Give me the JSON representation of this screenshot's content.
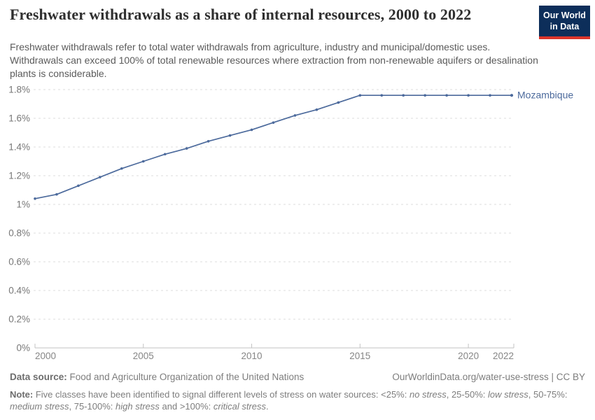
{
  "header": {
    "title": "Freshwater withdrawals as a share of internal resources, 2000 to 2022",
    "subtitle": "Freshwater withdrawals refer to total water withdrawals from agriculture, industry and municipal/domestic uses. Withdrawals can exceed 100% of total renewable resources where extraction from non-renewable aquifers or desalination plants is considerable.",
    "logo": {
      "line1": "Our World",
      "line2": "in Data",
      "bg_color": "#0d2e5a",
      "bar_color": "#dc352b"
    }
  },
  "chart_data": {
    "type": "line",
    "title": "Freshwater withdrawals as a share of internal resources, 2000 to 2022",
    "xlabel": "",
    "ylabel": "",
    "unit": "%",
    "xlim": [
      2000,
      2022
    ],
    "ylim": [
      0,
      1.8
    ],
    "grid": "dashed-horizontal",
    "legend_position": "end-of-line",
    "x": [
      2000,
      2001,
      2002,
      2003,
      2004,
      2005,
      2006,
      2007,
      2008,
      2009,
      2010,
      2011,
      2012,
      2013,
      2014,
      2015,
      2016,
      2017,
      2018,
      2019,
      2020,
      2021,
      2022
    ],
    "series": [
      {
        "name": "Mozambique",
        "color": "#4c6a9c",
        "values": [
          1.04,
          1.07,
          1.13,
          1.19,
          1.25,
          1.3,
          1.35,
          1.39,
          1.44,
          1.48,
          1.52,
          1.57,
          1.62,
          1.66,
          1.71,
          1.76,
          1.76,
          1.76,
          1.76,
          1.76,
          1.76,
          1.76,
          1.76
        ]
      }
    ],
    "x_ticks": [
      {
        "v": 2000,
        "label": "2000"
      },
      {
        "v": 2005,
        "label": "2005"
      },
      {
        "v": 2010,
        "label": "2010"
      },
      {
        "v": 2015,
        "label": "2015"
      },
      {
        "v": 2020,
        "label": "2020"
      },
      {
        "v": 2022,
        "label": "2022"
      }
    ],
    "y_ticks": [
      {
        "v": 0,
        "label": "0%"
      },
      {
        "v": 0.2,
        "label": "0.2%"
      },
      {
        "v": 0.4,
        "label": "0.4%"
      },
      {
        "v": 0.6,
        "label": "0.6%"
      },
      {
        "v": 0.8,
        "label": "0.8%"
      },
      {
        "v": 1,
        "label": "1%"
      },
      {
        "v": 1.2,
        "label": "1.2%"
      },
      {
        "v": 1.4,
        "label": "1.4%"
      },
      {
        "v": 1.6,
        "label": "1.6%"
      },
      {
        "v": 1.8,
        "label": "1.8%"
      }
    ],
    "colors": {
      "grid": "#dedede",
      "axis": "#c3c3c3",
      "y_tick_label": "#777777",
      "x_tick_label": "#868686"
    }
  },
  "footer": {
    "source_label": "Data source:",
    "source_value": " Food and Agriculture Organization of the United Nations",
    "link_text": "OurWorldinData.org/water-use-stress | CC BY",
    "note_label": "Note:",
    "note_segments": [
      {
        "text": " Five classes have been identified to signal different levels of stress on water sources: <25%: ",
        "italic": false
      },
      {
        "text": "no stress",
        "italic": true
      },
      {
        "text": ", 25-50%: ",
        "italic": false
      },
      {
        "text": "low stress",
        "italic": true
      },
      {
        "text": ", 50-75%: ",
        "italic": false
      },
      {
        "text": "medium stress",
        "italic": true
      },
      {
        "text": ", 75-100%: ",
        "italic": false
      },
      {
        "text": "high stress",
        "italic": true
      },
      {
        "text": " and >100%: ",
        "italic": false
      },
      {
        "text": "critical stress",
        "italic": true
      },
      {
        "text": ".",
        "italic": false
      }
    ]
  }
}
